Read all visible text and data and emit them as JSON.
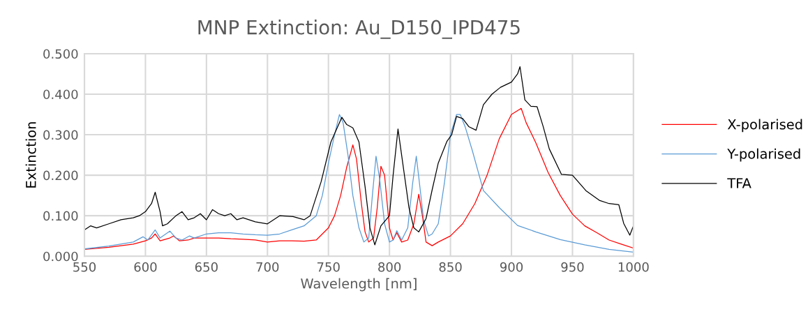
{
  "chart_data": {
    "type": "line",
    "title": "MNP Extinction: Au_D150_IPD475",
    "xlabel": "Wavelength [nm]",
    "ylabel": "Extinction",
    "xlim": [
      550,
      1000
    ],
    "xticks": [
      550,
      600,
      650,
      700,
      750,
      800,
      850,
      900,
      950,
      1000
    ],
    "ylim": [
      0,
      0.5
    ],
    "yticks": [
      {
        "value": 0,
        "label": "0.000"
      },
      {
        "value": 0.1,
        "label": "0.100"
      },
      {
        "value": 0.2,
        "label": "0.200"
      },
      {
        "value": 0.3,
        "label": "0.300"
      },
      {
        "value": 0.4,
        "label": "0.400"
      },
      {
        "value": 0.5,
        "label": "0.500"
      }
    ],
    "grid": true,
    "legend": "right",
    "marker": "none",
    "line_style": "solid",
    "series": [
      {
        "name": "X-polarised",
        "color": "#ff0000",
        "x": [
          550,
          570,
          590,
          600,
          605,
          608,
          612,
          620,
          623,
          628,
          635,
          640,
          650,
          660,
          670,
          680,
          690,
          700,
          710,
          720,
          730,
          740,
          745,
          750,
          755,
          760,
          765,
          770,
          773,
          777,
          780,
          783,
          787,
          790,
          793,
          796,
          800,
          803,
          806,
          810,
          815,
          820,
          824,
          827,
          830,
          835,
          840,
          850,
          860,
          870,
          880,
          890,
          900,
          908,
          912,
          920,
          930,
          940,
          950,
          960,
          970,
          980,
          990,
          1000
        ],
        "values": [
          0.017,
          0.022,
          0.03,
          0.038,
          0.045,
          0.055,
          0.038,
          0.045,
          0.05,
          0.038,
          0.04,
          0.045,
          0.045,
          0.045,
          0.043,
          0.042,
          0.04,
          0.035,
          0.038,
          0.038,
          0.037,
          0.04,
          0.055,
          0.07,
          0.1,
          0.15,
          0.22,
          0.275,
          0.24,
          0.13,
          0.06,
          0.035,
          0.045,
          0.12,
          0.222,
          0.2,
          0.07,
          0.04,
          0.058,
          0.035,
          0.04,
          0.08,
          0.153,
          0.1,
          0.035,
          0.026,
          0.035,
          0.05,
          0.08,
          0.13,
          0.2,
          0.29,
          0.35,
          0.365,
          0.33,
          0.28,
          0.207,
          0.15,
          0.104,
          0.075,
          0.058,
          0.04,
          0.03,
          0.02
        ]
      },
      {
        "name": "Y-polarised",
        "color": "#5b9bd5",
        "x": [
          550,
          570,
          590,
          598,
          602,
          608,
          612,
          620,
          625,
          630,
          636,
          640,
          650,
          660,
          670,
          680,
          690,
          700,
          710,
          720,
          730,
          740,
          745,
          750,
          755,
          759,
          762,
          766,
          770,
          775,
          779,
          783,
          786,
          789,
          792,
          796,
          800,
          803,
          806,
          810,
          815,
          819,
          822,
          825,
          828,
          832,
          835,
          840,
          845,
          850,
          855,
          858,
          862,
          868,
          877,
          890,
          905,
          920,
          940,
          960,
          980,
          1000
        ],
        "values": [
          0.018,
          0.025,
          0.035,
          0.048,
          0.04,
          0.065,
          0.045,
          0.062,
          0.045,
          0.04,
          0.05,
          0.045,
          0.055,
          0.058,
          0.058,
          0.055,
          0.053,
          0.052,
          0.055,
          0.065,
          0.075,
          0.1,
          0.15,
          0.23,
          0.3,
          0.35,
          0.33,
          0.25,
          0.15,
          0.07,
          0.035,
          0.045,
          0.15,
          0.247,
          0.19,
          0.08,
          0.035,
          0.04,
          0.063,
          0.04,
          0.07,
          0.18,
          0.247,
          0.17,
          0.09,
          0.05,
          0.055,
          0.08,
          0.18,
          0.3,
          0.35,
          0.35,
          0.32,
          0.26,
          0.162,
          0.12,
          0.076,
          0.06,
          0.041,
          0.028,
          0.017,
          0.01
        ]
      },
      {
        "name": "TFA",
        "color": "#000000",
        "x": [
          550,
          555,
          560,
          570,
          580,
          590,
          595,
          600,
          605,
          608,
          612,
          614,
          618,
          625,
          630,
          635,
          640,
          645,
          650,
          655,
          660,
          665,
          670,
          675,
          680,
          690,
          700,
          705,
          710,
          721,
          730,
          735,
          744,
          752,
          761,
          765,
          770,
          775,
          780,
          784,
          788,
          793,
          800,
          803,
          807,
          812,
          816,
          820,
          824,
          830,
          835,
          840,
          847,
          851,
          855,
          860,
          865,
          871,
          877,
          884,
          891,
          900,
          905,
          907,
          911,
          916,
          921,
          926,
          931,
          941,
          950,
          961,
          972,
          980,
          988,
          992,
          997,
          1000
        ],
        "values": [
          0.065,
          0.075,
          0.07,
          0.08,
          0.09,
          0.095,
          0.1,
          0.11,
          0.13,
          0.158,
          0.11,
          0.075,
          0.08,
          0.1,
          0.11,
          0.09,
          0.095,
          0.105,
          0.09,
          0.115,
          0.105,
          0.1,
          0.105,
          0.09,
          0.095,
          0.085,
          0.08,
          0.09,
          0.1,
          0.098,
          0.09,
          0.1,
          0.184,
          0.282,
          0.343,
          0.325,
          0.317,
          0.282,
          0.172,
          0.07,
          0.028,
          0.075,
          0.1,
          0.2,
          0.314,
          0.206,
          0.12,
          0.07,
          0.06,
          0.093,
          0.164,
          0.23,
          0.283,
          0.3,
          0.345,
          0.34,
          0.32,
          0.311,
          0.374,
          0.4,
          0.417,
          0.43,
          0.45,
          0.468,
          0.386,
          0.37,
          0.369,
          0.32,
          0.265,
          0.202,
          0.2,
          0.162,
          0.138,
          0.13,
          0.127,
          0.081,
          0.052,
          0.075
        ]
      }
    ]
  }
}
